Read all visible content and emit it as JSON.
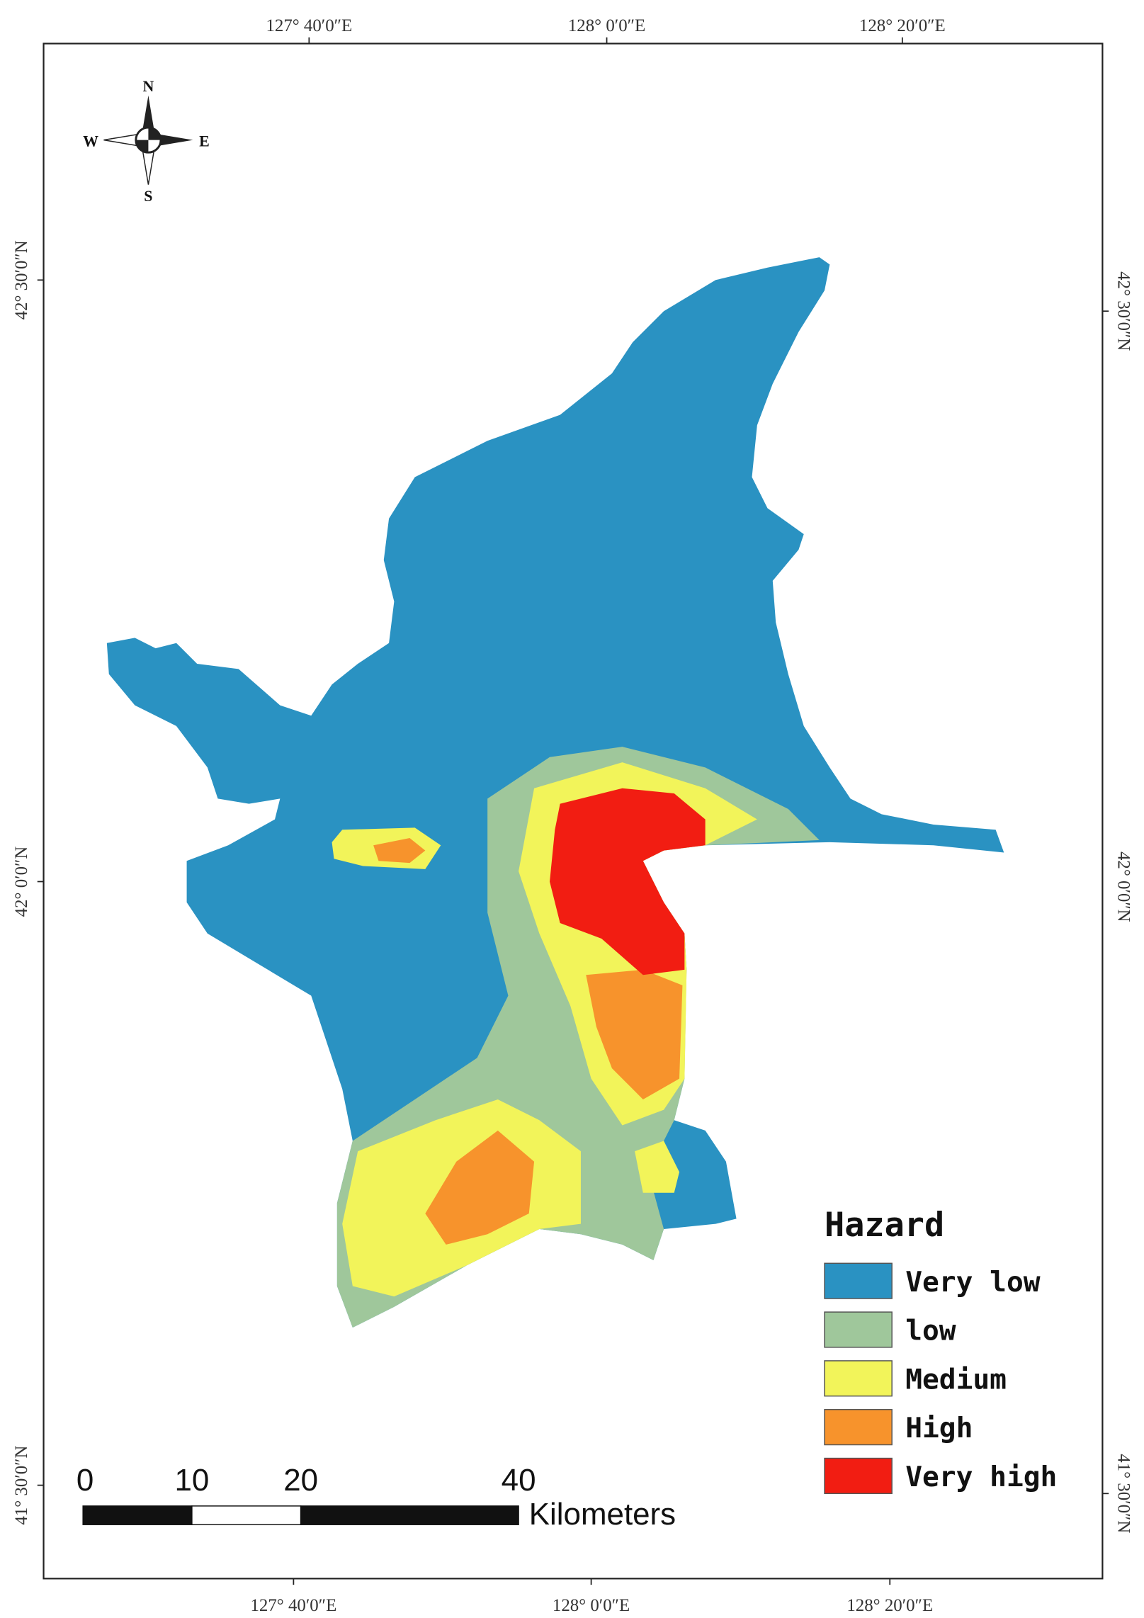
{
  "map": {
    "top_lon_labels": [
      "127° 40′0″E",
      "128° 0′0″E",
      "128° 20′0″E"
    ],
    "bottom_lon_labels": [
      "127° 40′0″E",
      "128° 0′0″E",
      "128° 20′0″E"
    ],
    "left_lat_labels": [
      "42° 30′0″N",
      "42° 0′0″N",
      "41° 30′0″N"
    ],
    "right_lat_labels": [
      "42° 30′0″N",
      "42° 0′0″N",
      "41° 30′0″N"
    ],
    "compass": {
      "n": "N",
      "s": "S",
      "e": "E",
      "w": "W"
    },
    "legend": {
      "title": "Hazard",
      "items": [
        {
          "label": "Very low",
          "color": "#2a92c2"
        },
        {
          "label": "low",
          "color": "#9fc79b"
        },
        {
          "label": "Medium",
          "color": "#f2f45a"
        },
        {
          "label": "High",
          "color": "#f7932c"
        },
        {
          "label": "Very high",
          "color": "#f21d12"
        }
      ]
    },
    "scale_bar": {
      "ticks": [
        "0",
        "10",
        "20",
        "40"
      ],
      "unit": "Kilometers"
    }
  }
}
